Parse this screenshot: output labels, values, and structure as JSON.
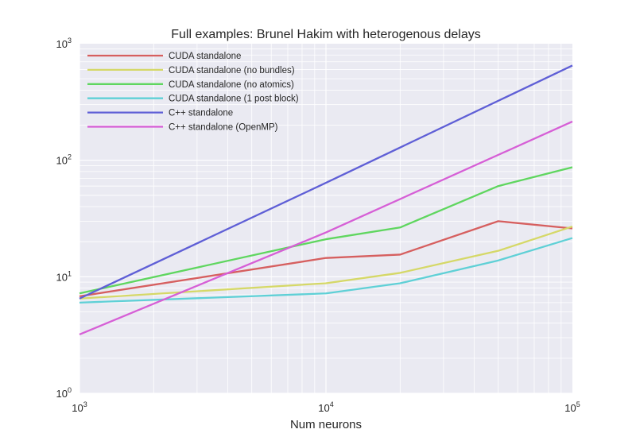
{
  "chart_data": {
    "type": "line",
    "title": "Full examples: Brunel Hakim with heterogenous delays",
    "xlabel": "Num neurons",
    "ylabel": "",
    "xscale": "log",
    "yscale": "log",
    "xlim": [
      1000,
      100000
    ],
    "ylim": [
      1,
      1000
    ],
    "grid": true,
    "legend_position": "top-left",
    "x_ticks": [
      {
        "base": "10",
        "exp": "3",
        "value": 1000
      },
      {
        "base": "10",
        "exp": "4",
        "value": 10000
      },
      {
        "base": "10",
        "exp": "5",
        "value": 100000
      }
    ],
    "y_ticks": [
      {
        "base": "10",
        "exp": "0",
        "value": 1
      },
      {
        "base": "10",
        "exp": "1",
        "value": 10
      },
      {
        "base": "10",
        "exp": "2",
        "value": 100
      },
      {
        "base": "10",
        "exp": "3",
        "value": 1000
      }
    ],
    "series": [
      {
        "name": "CUDA standalone",
        "color": "#d65f5f",
        "x": [
          1000,
          10000,
          20000,
          50000,
          100000
        ],
        "y": [
          6.8,
          14.5,
          15.5,
          30,
          26
        ]
      },
      {
        "name": "CUDA standalone (no bundles)",
        "color": "#d5d867",
        "x": [
          1000,
          10000,
          20000,
          50000,
          100000
        ],
        "y": [
          6.5,
          8.8,
          10.8,
          16.7,
          27
        ]
      },
      {
        "name": "CUDA standalone (no atomics)",
        "color": "#5fd65f",
        "x": [
          1000,
          10000,
          20000,
          50000,
          100000
        ],
        "y": [
          7.2,
          21,
          26.5,
          60,
          87
        ]
      },
      {
        "name": "CUDA standalone (1 post block)",
        "color": "#5fd0d6",
        "x": [
          1000,
          10000,
          20000,
          50000,
          100000
        ],
        "y": [
          6.0,
          7.2,
          8.8,
          13.8,
          21.5
        ]
      },
      {
        "name": "C++ standalone",
        "color": "#5f5fd6",
        "x": [
          1000,
          10000,
          100000
        ],
        "y": [
          6.5,
          64,
          650
        ]
      },
      {
        "name": "C++ standalone (OpenMP)",
        "color": "#d65fd6",
        "x": [
          1000,
          10000,
          100000
        ],
        "y": [
          3.2,
          24,
          215
        ]
      }
    ]
  }
}
